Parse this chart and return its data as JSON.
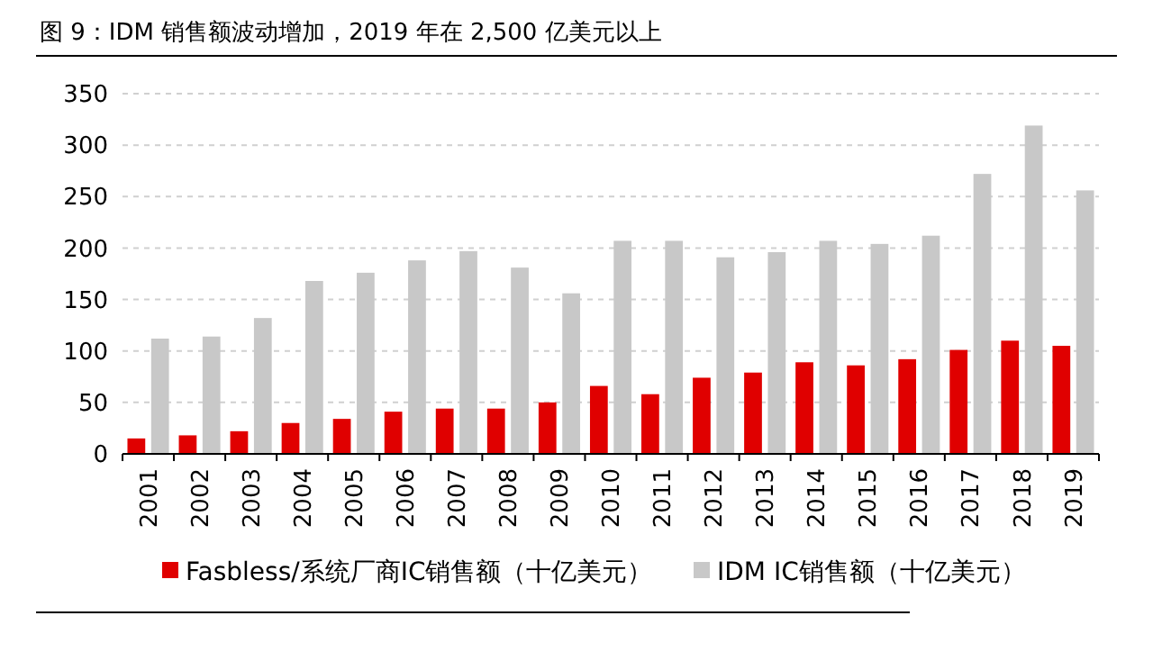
{
  "chart_data": {
    "type": "bar",
    "title": "图 9：IDM 销售额波动增加，2019 年在 2,500 亿美元以上",
    "categories": [
      "2001",
      "2002",
      "2003",
      "2004",
      "2005",
      "2006",
      "2007",
      "2008",
      "2009",
      "2010",
      "2011",
      "2012",
      "2013",
      "2014",
      "2015",
      "2016",
      "2017",
      "2018",
      "2019"
    ],
    "series": [
      {
        "name": "Fasbless/系统厂商IC销售额（十亿美元）",
        "color": "#e00000",
        "values": [
          15,
          18,
          22,
          30,
          34,
          41,
          44,
          44,
          50,
          66,
          58,
          74,
          79,
          89,
          86,
          92,
          101,
          110,
          105
        ]
      },
      {
        "name": "IDM IC销售额（十亿美元）",
        "color": "#c8c8c8",
        "values": [
          112,
          114,
          132,
          168,
          176,
          188,
          197,
          181,
          156,
          207,
          207,
          191,
          196,
          207,
          204,
          212,
          272,
          319,
          256
        ]
      }
    ],
    "ylim": [
      0,
      350
    ],
    "yticks": [
      0,
      50,
      100,
      150,
      200,
      250,
      300,
      350
    ],
    "grid": "y",
    "legend": "bottom"
  }
}
